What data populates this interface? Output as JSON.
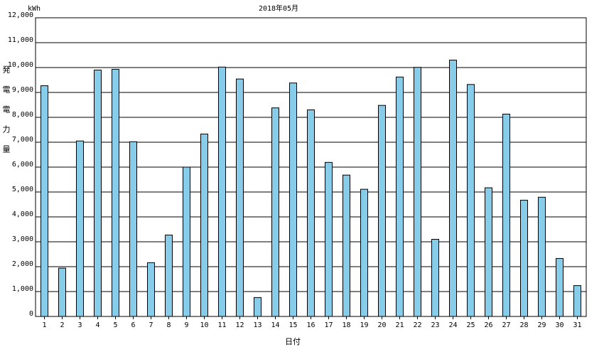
{
  "chart_data": {
    "type": "bar",
    "title": "2018年05月",
    "y_unit": "kWh",
    "y_label": "発電電力量",
    "x_label": "日付",
    "categories": [
      "1",
      "2",
      "3",
      "4",
      "5",
      "6",
      "7",
      "8",
      "9",
      "10",
      "11",
      "12",
      "13",
      "14",
      "15",
      "16",
      "17",
      "18",
      "19",
      "20",
      "21",
      "22",
      "23",
      "24",
      "25",
      "26",
      "27",
      "28",
      "29",
      "30",
      "31"
    ],
    "values": [
      9270,
      1940,
      7050,
      9900,
      9930,
      7020,
      2160,
      3270,
      6000,
      7330,
      10020,
      9540,
      760,
      8380,
      9380,
      8300,
      6190,
      5680,
      5110,
      8480,
      9620,
      10010,
      3100,
      10300,
      9320,
      5170,
      8130,
      4670,
      4790,
      2330,
      1240
    ],
    "color": "#87cde9",
    "ylim": [
      0,
      12000
    ],
    "yticks": [
      0,
      {
        "value": 1000,
        "label": "1,000"
      },
      {
        "value": 2000,
        "label": "2,000"
      },
      {
        "value": 3000,
        "label": "3,000"
      },
      {
        "value": 4000,
        "label": "4,000"
      },
      {
        "value": 5000,
        "label": "5,000"
      },
      {
        "value": 6000,
        "label": "6,000"
      },
      {
        "value": 7000,
        "label": "7,000"
      },
      {
        "value": 8000,
        "label": "8,000"
      },
      {
        "value": 9000,
        "label": "9,000"
      },
      {
        "value": 10000,
        "label": "10,000"
      },
      {
        "value": 11000,
        "label": "11,000"
      },
      {
        "value": 12000,
        "label": "12,000"
      }
    ],
    "grid": true
  }
}
